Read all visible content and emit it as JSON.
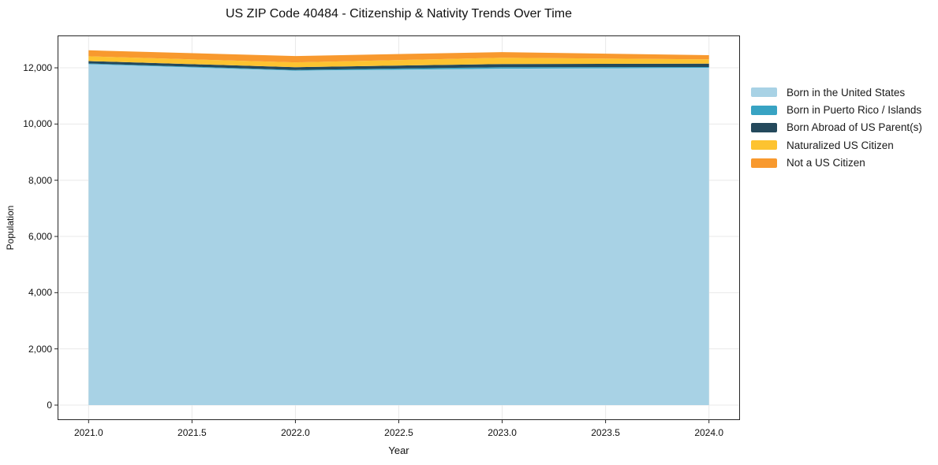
{
  "chart_data": {
    "type": "area",
    "stacked": true,
    "title": "US ZIP Code 40484 - Citizenship & Nativity Trends Over Time",
    "xlabel": "Year",
    "ylabel": "Population",
    "x": [
      2021,
      2022,
      2023,
      2024
    ],
    "series": [
      {
        "name": "Born in the United States",
        "color": "#a8d2e5",
        "values": [
          12130,
          11900,
          11970,
          12000
        ]
      },
      {
        "name": "Born in Puerto Rico / Islands",
        "color": "#38a3c3",
        "values": [
          25,
          25,
          55,
          30
        ]
      },
      {
        "name": "Born Abroad of US Parent(s)",
        "color": "#24495c",
        "values": [
          85,
          100,
          110,
          120
        ]
      },
      {
        "name": "Naturalized US Citizen",
        "color": "#fdc330",
        "values": [
          170,
          170,
          225,
          150
        ]
      },
      {
        "name": "Not a US Citizen",
        "color": "#f8992e",
        "values": [
          215,
          225,
          200,
          150
        ]
      }
    ],
    "totals": [
      12625,
      12420,
      12560,
      12450
    ],
    "x_tick_labels": [
      "2021.0",
      "2021.5",
      "2022.0",
      "2022.5",
      "2023.0",
      "2023.5",
      "2024.0"
    ],
    "y_tick_labels": [
      "0",
      "2,000",
      "4,000",
      "6,000",
      "8,000",
      "10,000",
      "12,000"
    ],
    "xlim": [
      2020.85,
      2024.15
    ],
    "ylim": [
      -533,
      13151
    ],
    "grid": true,
    "legend_position": "right"
  },
  "colors": {
    "spine": "#262626",
    "gridline": "#e9e9e9",
    "text": "#111111"
  }
}
